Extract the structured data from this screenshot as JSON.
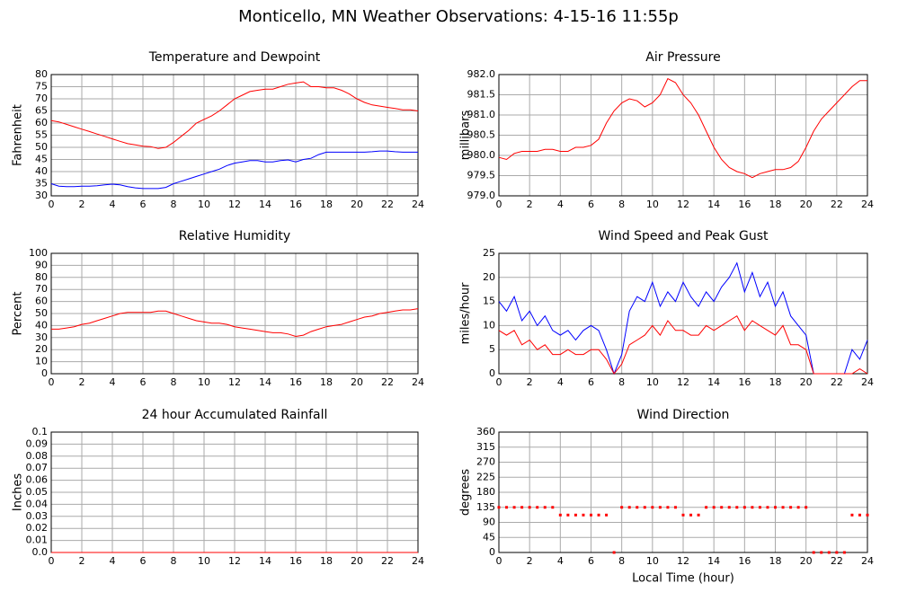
{
  "title": "Monticello, MN Weather Observations: 4-15-16 11:55p",
  "chart_data": [
    {
      "type": "line",
      "title": "Temperature and Dewpoint",
      "ylabel": "Fahrenheit",
      "x": [
        0,
        0.5,
        1,
        1.5,
        2,
        2.5,
        3,
        3.5,
        4,
        4.5,
        5,
        5.5,
        6,
        6.5,
        7,
        7.5,
        8,
        8.5,
        9,
        9.5,
        10,
        10.5,
        11,
        11.5,
        12,
        12.5,
        13,
        13.5,
        14,
        14.5,
        15,
        15.5,
        16,
        16.5,
        17,
        17.5,
        18,
        18.5,
        19,
        19.5,
        20,
        20.5,
        21,
        21.5,
        22,
        22.5,
        23,
        23.5,
        24
      ],
      "series": [
        {
          "name": "Temperature",
          "color": "#ff0000",
          "values": [
            61,
            60.5,
            59.5,
            58.5,
            57.5,
            56.5,
            55.5,
            54.5,
            53.5,
            52.5,
            51.5,
            51,
            50.5,
            50.3,
            49.5,
            50,
            52,
            54.5,
            57,
            60,
            61.5,
            63,
            65,
            67.5,
            70,
            71.5,
            73,
            73.5,
            74,
            74,
            75,
            76,
            76.5,
            77,
            75,
            75,
            74.5,
            74.5,
            73.5,
            72,
            70,
            68.5,
            67.5,
            67,
            66.5,
            66,
            65.5,
            65.5,
            65
          ]
        },
        {
          "name": "Dewpoint",
          "color": "#0000ff",
          "values": [
            35,
            34,
            33.8,
            33.8,
            34,
            34,
            34.2,
            34.5,
            34.8,
            34.5,
            33.8,
            33.3,
            33,
            33,
            33,
            33.5,
            35,
            36,
            37,
            38,
            39,
            40,
            41,
            42.5,
            43.5,
            44,
            44.5,
            44.5,
            44,
            44,
            44.5,
            44.8,
            44,
            45,
            45.5,
            47,
            48,
            48,
            48,
            48,
            48,
            48,
            48.2,
            48.5,
            48.5,
            48.2,
            48,
            48,
            48
          ]
        }
      ],
      "xlim": [
        0,
        24
      ],
      "xticks": [
        0,
        2,
        4,
        6,
        8,
        10,
        12,
        14,
        16,
        18,
        20,
        22,
        24
      ],
      "ylim": [
        30,
        80
      ],
      "yticks": [
        30,
        35,
        40,
        45,
        50,
        55,
        60,
        65,
        70,
        75,
        80
      ],
      "grid": true
    },
    {
      "type": "line",
      "title": "Air Pressure",
      "ylabel": "millibars",
      "x": [
        0,
        0.5,
        1,
        1.5,
        2,
        2.5,
        3,
        3.5,
        4,
        4.5,
        5,
        5.5,
        6,
        6.5,
        7,
        7.5,
        8,
        8.5,
        9,
        9.5,
        10,
        10.5,
        11,
        11.5,
        12,
        12.5,
        13,
        13.5,
        14,
        14.5,
        15,
        15.5,
        16,
        16.5,
        17,
        17.5,
        18,
        18.5,
        19,
        19.5,
        20,
        20.5,
        21,
        21.5,
        22,
        22.5,
        23,
        23.5,
        24
      ],
      "series": [
        {
          "name": "Pressure",
          "color": "#ff0000",
          "values": [
            979.95,
            979.9,
            980.05,
            980.1,
            980.1,
            980.1,
            980.15,
            980.15,
            980.1,
            980.1,
            980.2,
            980.2,
            980.25,
            980.4,
            980.8,
            981.1,
            981.3,
            981.4,
            981.35,
            981.2,
            981.3,
            981.5,
            981.9,
            981.8,
            981.5,
            981.3,
            981,
            980.6,
            980.2,
            979.9,
            979.7,
            979.6,
            979.55,
            979.45,
            979.55,
            979.6,
            979.65,
            979.65,
            979.7,
            979.85,
            980.2,
            980.6,
            980.9,
            981.1,
            981.3,
            981.5,
            981.7,
            981.85,
            981.85
          ]
        }
      ],
      "xlim": [
        0,
        24
      ],
      "xticks": [
        0,
        2,
        4,
        6,
        8,
        10,
        12,
        14,
        16,
        18,
        20,
        22,
        24
      ],
      "ylim": [
        979,
        982
      ],
      "yticks": [
        {
          "value": 979,
          "label": "979.0"
        },
        {
          "value": 979.5,
          "label": "979.5"
        },
        {
          "value": 980,
          "label": "980.0"
        },
        {
          "value": 980.5,
          "label": "980.5"
        },
        {
          "value": 981,
          "label": "981.0"
        },
        {
          "value": 981.5,
          "label": "981.5"
        },
        {
          "value": 982,
          "label": "982.0"
        }
      ],
      "grid": true
    },
    {
      "type": "line",
      "title": "Relative Humidity",
      "ylabel": "Percent",
      "x": [
        0,
        0.5,
        1,
        1.5,
        2,
        2.5,
        3,
        3.5,
        4,
        4.5,
        5,
        5.5,
        6,
        6.5,
        7,
        7.5,
        8,
        8.5,
        9,
        9.5,
        10,
        10.5,
        11,
        11.5,
        12,
        12.5,
        13,
        13.5,
        14,
        14.5,
        15,
        15.5,
        16,
        16.5,
        17,
        17.5,
        18,
        18.5,
        19,
        19.5,
        20,
        20.5,
        21,
        21.5,
        22,
        22.5,
        23,
        23.5,
        24
      ],
      "series": [
        {
          "name": "Humidity",
          "color": "#ff0000",
          "values": [
            37,
            37,
            38,
            39,
            41,
            42,
            44,
            46,
            48,
            50,
            51,
            51,
            51,
            51,
            52,
            52,
            50,
            48,
            46,
            44,
            43,
            42,
            42,
            41,
            39,
            38,
            37,
            36,
            35,
            34,
            34,
            33,
            31,
            32,
            35,
            37,
            39,
            40,
            41,
            43,
            45,
            47,
            48,
            50,
            51,
            52,
            53,
            53,
            54
          ]
        }
      ],
      "xlim": [
        0,
        24
      ],
      "xticks": [
        0,
        2,
        4,
        6,
        8,
        10,
        12,
        14,
        16,
        18,
        20,
        22,
        24
      ],
      "ylim": [
        0,
        100
      ],
      "yticks": [
        0,
        10,
        20,
        30,
        40,
        50,
        60,
        70,
        80,
        90,
        100
      ],
      "grid": true
    },
    {
      "type": "line",
      "title": "Wind Speed and Peak Gust",
      "ylabel": "miles/hour",
      "x": [
        0,
        0.5,
        1,
        1.5,
        2,
        2.5,
        3,
        3.5,
        4,
        4.5,
        5,
        5.5,
        6,
        6.5,
        7,
        7.5,
        8,
        8.5,
        9,
        9.5,
        10,
        10.5,
        11,
        11.5,
        12,
        12.5,
        13,
        13.5,
        14,
        14.5,
        15,
        15.5,
        16,
        16.5,
        17,
        17.5,
        18,
        18.5,
        19,
        19.5,
        20,
        20.5,
        21,
        21.5,
        22,
        22.5,
        23,
        23.5,
        24
      ],
      "series": [
        {
          "name": "Peak Gust",
          "color": "#0000ff",
          "values": [
            15,
            13,
            16,
            11,
            13,
            10,
            12,
            9,
            8,
            9,
            7,
            9,
            10,
            9,
            5,
            0,
            4,
            13,
            16,
            15,
            19,
            14,
            17,
            15,
            19,
            16,
            14,
            17,
            15,
            18,
            20,
            23,
            17,
            21,
            16,
            19,
            14,
            17,
            12,
            10,
            8,
            0,
            0,
            0,
            0,
            0,
            5,
            3,
            7
          ]
        },
        {
          "name": "Wind Speed",
          "color": "#ff0000",
          "values": [
            9,
            8,
            9,
            6,
            7,
            5,
            6,
            4,
            4,
            5,
            4,
            4,
            5,
            5,
            3,
            0,
            2,
            6,
            7,
            8,
            10,
            8,
            11,
            9,
            9,
            8,
            8,
            10,
            9,
            10,
            11,
            12,
            9,
            11,
            10,
            9,
            8,
            10,
            6,
            6,
            5,
            0,
            0,
            0,
            0,
            0,
            0,
            1,
            0
          ]
        }
      ],
      "xlim": [
        0,
        24
      ],
      "xticks": [
        0,
        2,
        4,
        6,
        8,
        10,
        12,
        14,
        16,
        18,
        20,
        22,
        24
      ],
      "ylim": [
        0,
        25
      ],
      "yticks": [
        0,
        5,
        10,
        15,
        20,
        25
      ],
      "grid": true
    },
    {
      "type": "line",
      "title": "24 hour Accumulated Rainfall",
      "ylabel": "Inches",
      "x": [
        0,
        0.5,
        1,
        1.5,
        2,
        2.5,
        3,
        3.5,
        4,
        4.5,
        5,
        5.5,
        6,
        6.5,
        7,
        7.5,
        8,
        8.5,
        9,
        9.5,
        10,
        10.5,
        11,
        11.5,
        12,
        12.5,
        13,
        13.5,
        14,
        14.5,
        15,
        15.5,
        16,
        16.5,
        17,
        17.5,
        18,
        18.5,
        19,
        19.5,
        20,
        20.5,
        21,
        21.5,
        22,
        22.5,
        23,
        23.5,
        24
      ],
      "series": [
        {
          "name": "Rainfall",
          "color": "#ff0000",
          "values": [
            0,
            0,
            0,
            0,
            0,
            0,
            0,
            0,
            0,
            0,
            0,
            0,
            0,
            0,
            0,
            0,
            0,
            0,
            0,
            0,
            0,
            0,
            0,
            0,
            0,
            0,
            0,
            0,
            0,
            0,
            0,
            0,
            0,
            0,
            0,
            0,
            0,
            0,
            0,
            0,
            0,
            0,
            0,
            0,
            0,
            0,
            0,
            0,
            0
          ]
        }
      ],
      "xlim": [
        0,
        24
      ],
      "xticks": [
        0,
        2,
        4,
        6,
        8,
        10,
        12,
        14,
        16,
        18,
        20,
        22,
        24
      ],
      "ylim": [
        0,
        0.1
      ],
      "yticks": [
        {
          "value": 0,
          "label": "0.0"
        },
        0.01,
        0.02,
        0.03,
        0.04,
        0.05,
        0.06,
        0.07,
        0.08,
        0.09,
        0.1
      ],
      "grid": true
    },
    {
      "type": "scatter",
      "title": "Wind Direction",
      "ylabel": "degrees",
      "xlabel": "Local Time (hour)",
      "x": [
        0,
        0.5,
        1,
        1.5,
        2,
        2.5,
        3,
        3.5,
        4,
        4.5,
        5,
        5.5,
        6,
        6.5,
        7,
        7.5,
        8,
        8.5,
        9,
        9.5,
        10,
        10.5,
        11,
        11.5,
        12,
        12.5,
        13,
        13.5,
        14,
        14.5,
        15,
        15.5,
        16,
        16.5,
        17,
        17.5,
        18,
        18.5,
        19,
        19.5,
        20,
        20.5,
        21,
        21.5,
        22,
        22.5,
        23,
        23.5,
        24
      ],
      "series": [
        {
          "name": "Direction",
          "color": "#ff0000",
          "values": [
            135,
            135,
            135,
            135,
            135,
            135,
            135,
            135,
            112,
            112,
            112,
            112,
            112,
            112,
            112,
            0,
            135,
            135,
            135,
            135,
            135,
            135,
            135,
            135,
            112,
            112,
            112,
            135,
            135,
            135,
            135,
            135,
            135,
            135,
            135,
            135,
            135,
            135,
            135,
            135,
            135,
            0,
            0,
            0,
            0,
            0,
            112,
            112,
            112
          ]
        }
      ],
      "xlim": [
        0,
        24
      ],
      "xticks": [
        0,
        2,
        4,
        6,
        8,
        10,
        12,
        14,
        16,
        18,
        20,
        22,
        24
      ],
      "ylim": [
        0,
        360
      ],
      "yticks": [
        0,
        45,
        90,
        135,
        180,
        225,
        270,
        315,
        360
      ],
      "grid": true
    }
  ]
}
